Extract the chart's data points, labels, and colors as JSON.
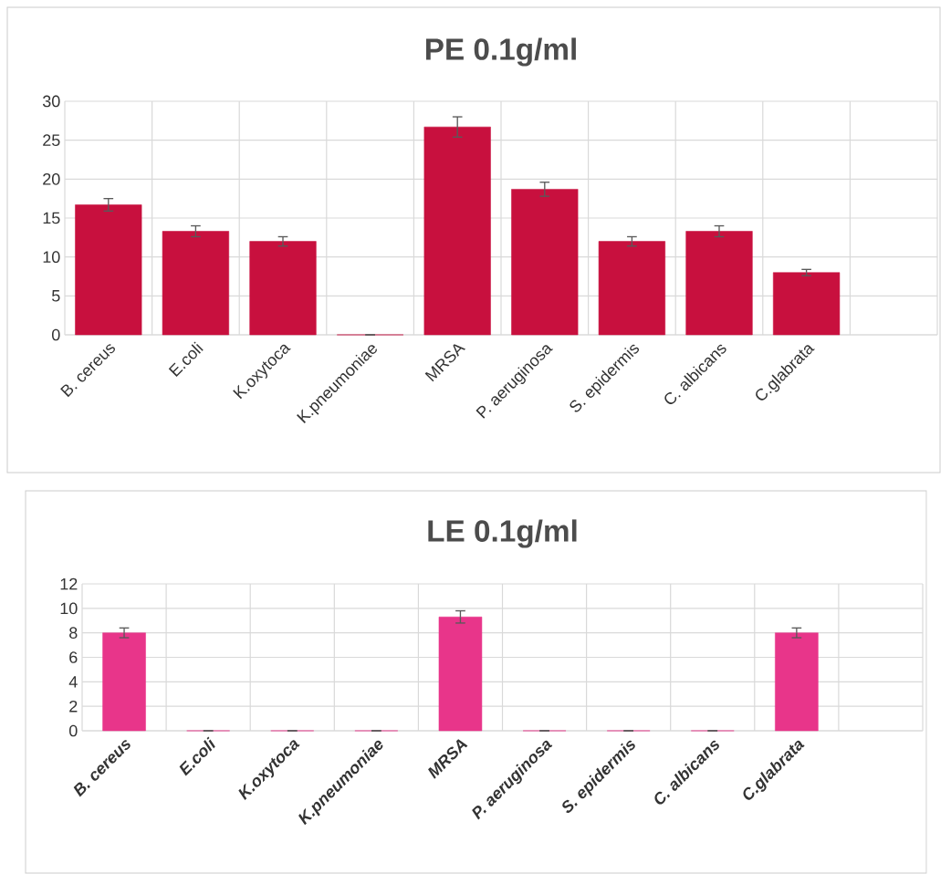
{
  "chart_data": [
    {
      "type": "bar",
      "title": "PE 0.1g/ml",
      "categories": [
        "B. cereus",
        "E.coli",
        "K.oxytoca",
        "K.pneumoniae",
        "MRSA",
        "P. aeruginosa",
        "S. epidermis",
        "C. albicans",
        "C.glabrata",
        null
      ],
      "values": [
        16.7,
        13.3,
        12,
        0,
        26.7,
        18.7,
        12,
        13.3,
        8,
        null
      ],
      "errors": [
        0.8,
        0.7,
        0.6,
        null,
        1.3,
        0.9,
        0.6,
        0.7,
        0.4,
        null
      ],
      "color": "#c8103e",
      "ylim": [
        0,
        30
      ],
      "yticks": [
        0,
        5,
        10,
        15,
        20,
        25,
        30
      ],
      "grid": true
    },
    {
      "type": "bar",
      "title": "LE 0.1g/ml",
      "categories": [
        "B. cereus",
        "E.coli",
        "K.oxytoca",
        "K.pneumoniae",
        "MRSA",
        "P. aeruginosa",
        "S. epidermis",
        "C. albicans",
        "C.glabrata",
        null
      ],
      "values": [
        8,
        0,
        0,
        0,
        9.3,
        0,
        0,
        0,
        8,
        null
      ],
      "errors": [
        0.4,
        null,
        null,
        null,
        0.5,
        null,
        null,
        null,
        0.4,
        null
      ],
      "color": "#e8358a",
      "ylim": [
        0,
        12
      ],
      "yticks": [
        0,
        2,
        4,
        6,
        8,
        10,
        12
      ],
      "grid": true
    }
  ]
}
